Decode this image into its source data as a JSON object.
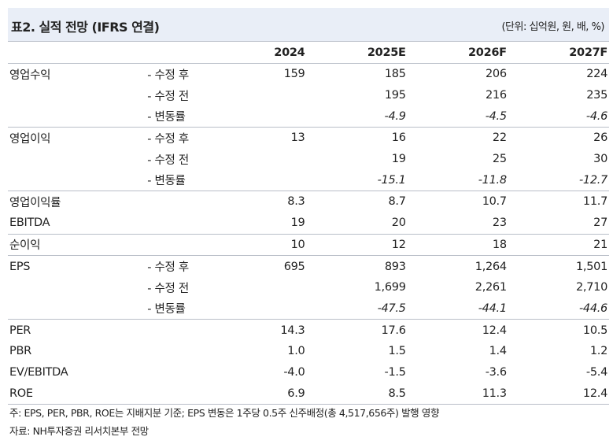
{
  "header": {
    "title": "표2. 실적 전망 (IFRS 연결)",
    "unit": "(단위: 십억원, 원, 배, %)"
  },
  "columns": [
    "2024",
    "2025E",
    "2026F",
    "2027F"
  ],
  "rows": [
    {
      "label": "영업수익",
      "sub": "- 수정 후",
      "values": [
        "159",
        "185",
        "206",
        "224"
      ],
      "italic": false,
      "sep": false
    },
    {
      "label": "",
      "sub": "- 수정 전",
      "values": [
        "",
        "195",
        "216",
        "235"
      ],
      "italic": false,
      "sep": false
    },
    {
      "label": "",
      "sub": "- 변동률",
      "values": [
        "",
        "-4.9",
        "-4.5",
        "-4.6"
      ],
      "italic": true,
      "sep": true
    },
    {
      "label": "영업이익",
      "sub": "- 수정 후",
      "values": [
        "13",
        "16",
        "22",
        "26"
      ],
      "italic": false,
      "sep": false
    },
    {
      "label": "",
      "sub": "- 수정 전",
      "values": [
        "",
        "19",
        "25",
        "30"
      ],
      "italic": false,
      "sep": false
    },
    {
      "label": "",
      "sub": "- 변동률",
      "values": [
        "",
        "-15.1",
        "-11.8",
        "-12.7"
      ],
      "italic": true,
      "sep": true
    },
    {
      "label": "영업이익률",
      "sub": "",
      "values": [
        "8.3",
        "8.7",
        "10.7",
        "11.7"
      ],
      "italic": false,
      "sep": false
    },
    {
      "label": "EBITDA",
      "sub": "",
      "values": [
        "19",
        "20",
        "23",
        "27"
      ],
      "italic": false,
      "sep": true
    },
    {
      "label": "순이익",
      "sub": "",
      "values": [
        "10",
        "12",
        "18",
        "21"
      ],
      "italic": false,
      "sep": true
    },
    {
      "label": "EPS",
      "sub": "- 수정 후",
      "values": [
        "695",
        "893",
        "1,264",
        "1,501"
      ],
      "italic": false,
      "sep": false
    },
    {
      "label": "",
      "sub": "- 수정 전",
      "values": [
        "",
        "1,699",
        "2,261",
        "2,710"
      ],
      "italic": false,
      "sep": false
    },
    {
      "label": "",
      "sub": "- 변동률",
      "values": [
        "",
        "-47.5",
        "-44.1",
        "-44.6"
      ],
      "italic": true,
      "sep": true
    },
    {
      "label": "PER",
      "sub": "",
      "values": [
        "14.3",
        "17.6",
        "12.4",
        "10.5"
      ],
      "italic": false,
      "sep": false
    },
    {
      "label": "PBR",
      "sub": "",
      "values": [
        "1.0",
        "1.5",
        "1.4",
        "1.2"
      ],
      "italic": false,
      "sep": false
    },
    {
      "label": "EV/EBITDA",
      "sub": "",
      "values": [
        "-4.0",
        "-1.5",
        "-3.6",
        "-5.4"
      ],
      "italic": false,
      "sep": false
    },
    {
      "label": "ROE",
      "sub": "",
      "values": [
        "6.9",
        "8.5",
        "11.3",
        "12.4"
      ],
      "italic": false,
      "sep": true
    }
  ],
  "notes": {
    "note": "주: EPS, PER, PBR, ROE는 지배지분 기준; EPS 변동은 1주당 0.5주 신주배정(총 4,517,656주) 발행 영향",
    "source": "자료: NH투자증권 리서치본부 전망"
  }
}
